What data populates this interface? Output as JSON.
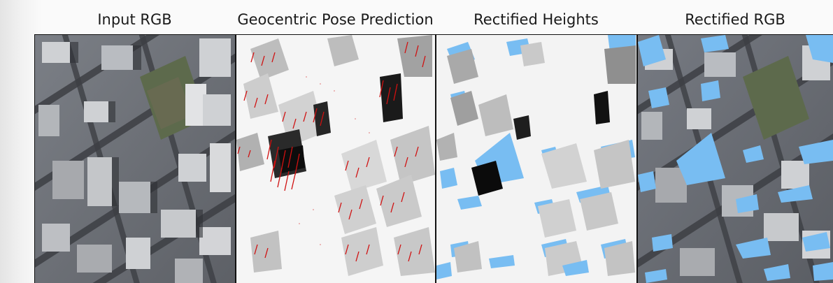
{
  "panels": [
    {
      "title": "Input RGB",
      "type": "aerial-photo"
    },
    {
      "title": "Geocentric Pose Prediction",
      "type": "height-map-with-flow-vectors"
    },
    {
      "title": "Rectified Heights",
      "type": "rectified-height-map"
    },
    {
      "title": "Rectified RGB",
      "type": "rectified-aerial-photo"
    }
  ],
  "colors": {
    "vector_arrows": "#d01010",
    "occlusion_fill": "#78bdf2",
    "panel_border": "#111111",
    "background": "#fafafa"
  }
}
